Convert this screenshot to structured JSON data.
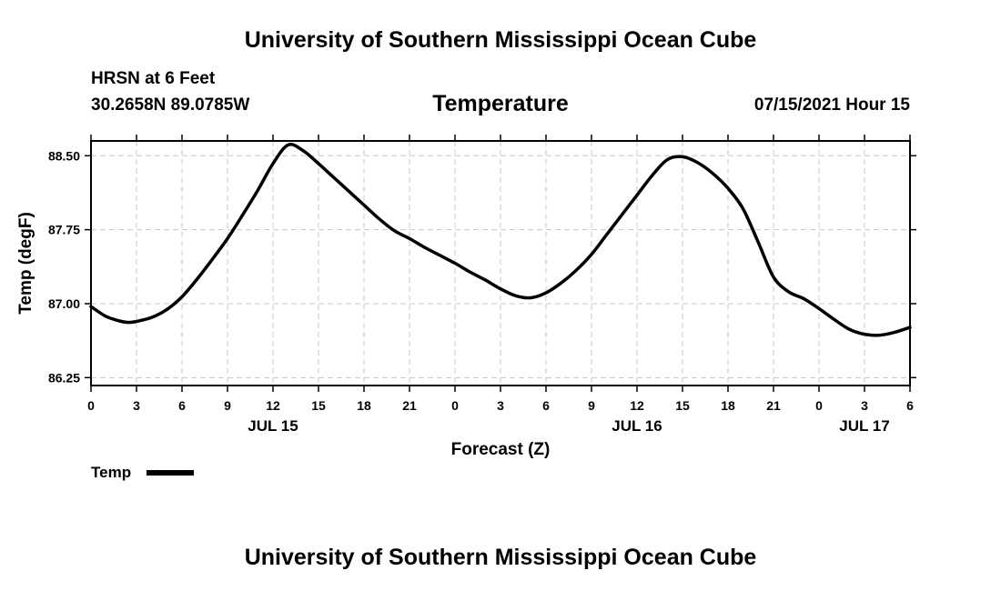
{
  "header": {
    "org_title": "University of Southern Mississippi Ocean Cube",
    "station": "HRSN at 6 Feet",
    "coords": "30.2658N  89.0785W",
    "date_hour": "07/15/2021 Hour 15"
  },
  "footer": {
    "org_title": "University of Southern Mississippi Ocean Cube"
  },
  "chart_data": {
    "type": "line",
    "title": "Temperature",
    "xlabel": "Forecast (Z)",
    "ylabel": "Temp (degF)",
    "x_unit": "hours",
    "x_range": [
      0,
      54
    ],
    "ylim": [
      86.17,
      88.65
    ],
    "grid": true,
    "x_ticks": [
      {
        "x": 0,
        "label": "0"
      },
      {
        "x": 3,
        "label": "3"
      },
      {
        "x": 6,
        "label": "6"
      },
      {
        "x": 9,
        "label": "9"
      },
      {
        "x": 12,
        "label": "12"
      },
      {
        "x": 15,
        "label": "15"
      },
      {
        "x": 18,
        "label": "18"
      },
      {
        "x": 21,
        "label": "21"
      },
      {
        "x": 24,
        "label": "0"
      },
      {
        "x": 27,
        "label": "3"
      },
      {
        "x": 30,
        "label": "6"
      },
      {
        "x": 33,
        "label": "9"
      },
      {
        "x": 36,
        "label": "12"
      },
      {
        "x": 39,
        "label": "15"
      },
      {
        "x": 42,
        "label": "18"
      },
      {
        "x": 45,
        "label": "21"
      },
      {
        "x": 48,
        "label": "0"
      },
      {
        "x": 51,
        "label": "3"
      },
      {
        "x": 54,
        "label": "6"
      }
    ],
    "date_labels": [
      {
        "x": 12,
        "label": "JUL 15"
      },
      {
        "x": 36,
        "label": "JUL 16"
      },
      {
        "x": 51,
        "label": "JUL 17"
      }
    ],
    "y_ticks": [
      {
        "y": 86.25,
        "label": "86.25"
      },
      {
        "y": 87.0,
        "label": "87.00"
      },
      {
        "y": 87.75,
        "label": "87.75"
      },
      {
        "y": 88.5,
        "label": "88.50"
      }
    ],
    "legend": {
      "label": "Temp",
      "placement": "bottom-left"
    },
    "series": [
      {
        "name": "Temp",
        "color": "#000000",
        "x": [
          0,
          1,
          2,
          2.5,
          3,
          4,
          5,
          6,
          7,
          8,
          9,
          10,
          11,
          12,
          13,
          14,
          15,
          16,
          17,
          18,
          19,
          20,
          21,
          22,
          23,
          24,
          25,
          26,
          27,
          28,
          29,
          30,
          31,
          32,
          33,
          34,
          35,
          36,
          37,
          38,
          39,
          40,
          41,
          42,
          43,
          44,
          45,
          46,
          47,
          48,
          49,
          50,
          51,
          52,
          53,
          54
        ],
        "y": [
          86.97,
          86.87,
          86.82,
          86.81,
          86.82,
          86.86,
          86.94,
          87.07,
          87.25,
          87.45,
          87.66,
          87.9,
          88.15,
          88.42,
          88.61,
          88.55,
          88.42,
          88.28,
          88.14,
          88.0,
          87.86,
          87.74,
          87.66,
          87.57,
          87.49,
          87.41,
          87.32,
          87.24,
          87.15,
          87.08,
          87.06,
          87.11,
          87.21,
          87.34,
          87.5,
          87.7,
          87.9,
          88.1,
          88.3,
          88.46,
          88.49,
          88.43,
          88.32,
          88.17,
          87.96,
          87.62,
          87.27,
          87.12,
          87.05,
          86.95,
          86.84,
          86.74,
          86.69,
          86.68,
          86.71,
          86.76
        ]
      }
    ]
  }
}
